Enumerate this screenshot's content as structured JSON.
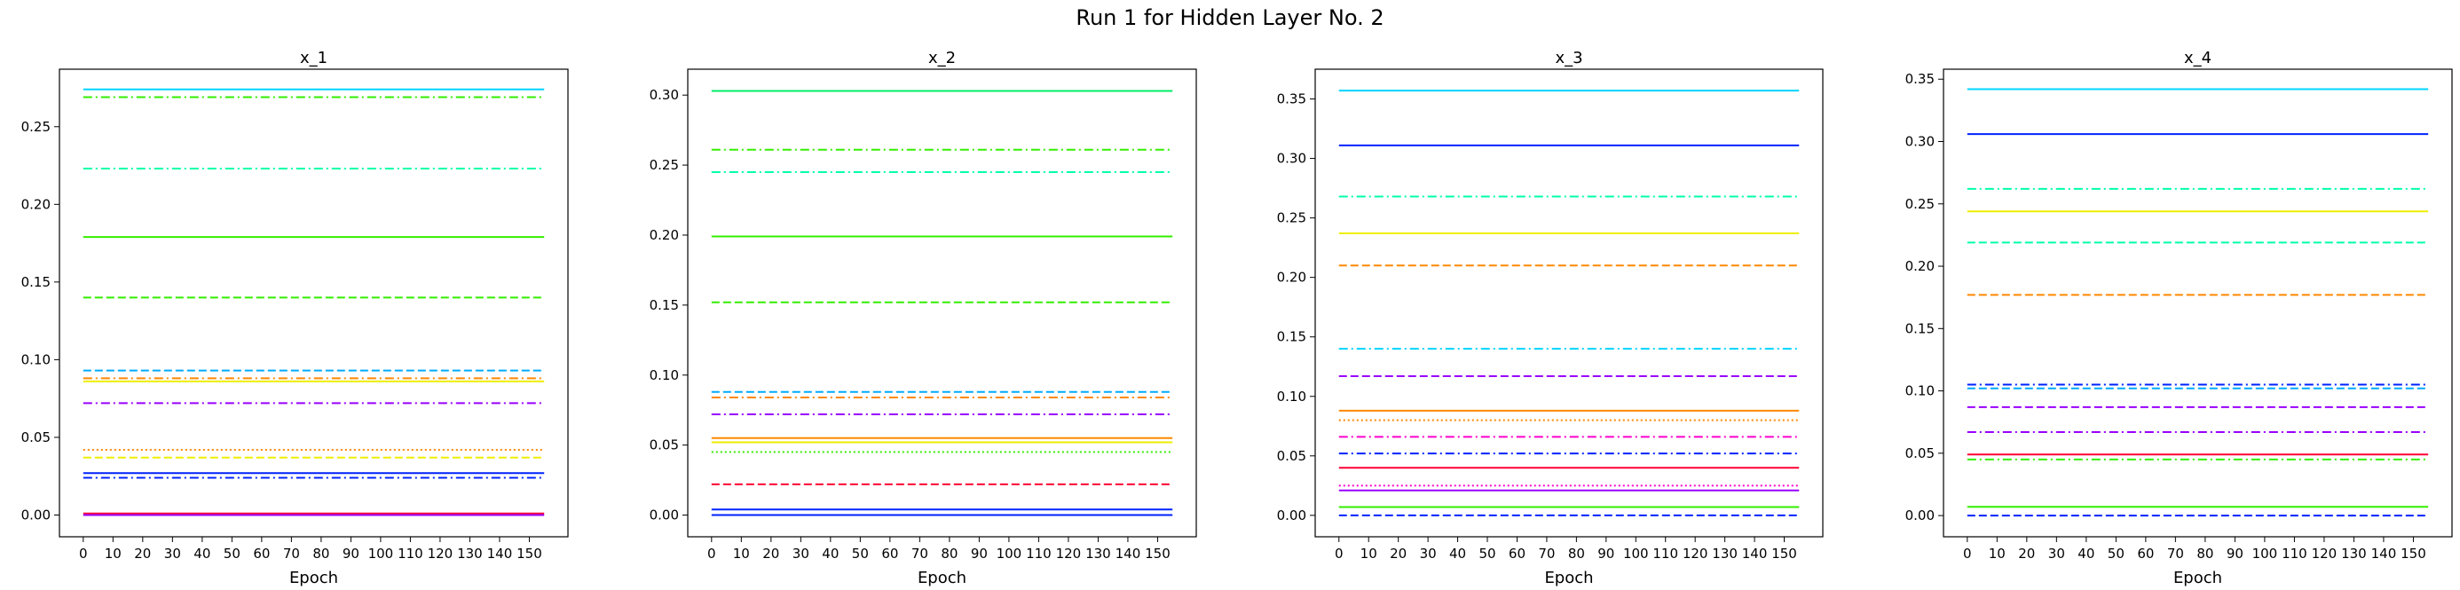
{
  "figure": {
    "suptitle": "Run 1 for Hidden Layer No. 2"
  },
  "chart_data": [
    {
      "type": "line",
      "title": "x_1",
      "xlabel": "Epoch",
      "ylabel": "",
      "xlim": [
        -8,
        163
      ],
      "ylim": [
        -0.014,
        0.287
      ],
      "xticks": [
        0,
        10,
        20,
        30,
        40,
        50,
        60,
        70,
        80,
        90,
        100,
        110,
        120,
        130,
        140,
        150
      ],
      "yticks": [
        0.0,
        0.05,
        0.1,
        0.15,
        0.2,
        0.25
      ],
      "yticklabels": [
        "0.00",
        "0.05",
        "0.10",
        "0.15",
        "0.20",
        "0.25"
      ],
      "grid": false,
      "x_range": [
        0,
        155
      ],
      "series": [
        {
          "value": 0.274,
          "color": "#00d4ff",
          "style": "solid"
        },
        {
          "value": 0.269,
          "color": "#33ee00",
          "style": "dashdot"
        },
        {
          "value": 0.223,
          "color": "#00ffaa",
          "style": "dashdot"
        },
        {
          "value": 0.179,
          "color": "#33ee00",
          "style": "solid"
        },
        {
          "value": 0.14,
          "color": "#33ee00",
          "style": "dashed"
        },
        {
          "value": 0.093,
          "color": "#00aaff",
          "style": "dashed"
        },
        {
          "value": 0.088,
          "color": "#ff8800",
          "style": "dashdot"
        },
        {
          "value": 0.086,
          "color": "#eeee00",
          "style": "solid"
        },
        {
          "value": 0.072,
          "color": "#9900ff",
          "style": "dashdot"
        },
        {
          "value": 0.042,
          "color": "#ff8800",
          "style": "dotted"
        },
        {
          "value": 0.037,
          "color": "#eeee00",
          "style": "dashed"
        },
        {
          "value": 0.027,
          "color": "#0022ff",
          "style": "solid"
        },
        {
          "value": 0.024,
          "color": "#0022ff",
          "style": "dashdot"
        },
        {
          "value": 0.001,
          "color": "#ff0033",
          "style": "solid"
        },
        {
          "value": 0.0,
          "color": "#9900ff",
          "style": "solid"
        }
      ]
    },
    {
      "type": "line",
      "title": "x_2",
      "xlabel": "Epoch",
      "ylabel": "",
      "xlim": [
        -8,
        163
      ],
      "ylim": [
        -0.0155,
        0.3185
      ],
      "xticks": [
        0,
        10,
        20,
        30,
        40,
        50,
        60,
        70,
        80,
        90,
        100,
        110,
        120,
        130,
        140,
        150
      ],
      "yticks": [
        0.0,
        0.05,
        0.1,
        0.15,
        0.2,
        0.25,
        0.3
      ],
      "yticklabels": [
        "0.00",
        "0.05",
        "0.10",
        "0.15",
        "0.20",
        "0.25",
        "0.30"
      ],
      "grid": false,
      "x_range": [
        0,
        155
      ],
      "series": [
        {
          "value": 0.303,
          "color": "#00ee66",
          "style": "solid"
        },
        {
          "value": 0.261,
          "color": "#33ee00",
          "style": "dashdot"
        },
        {
          "value": 0.245,
          "color": "#00ffaa",
          "style": "dashdot"
        },
        {
          "value": 0.199,
          "color": "#33ee00",
          "style": "solid"
        },
        {
          "value": 0.152,
          "color": "#33ee00",
          "style": "dashed"
        },
        {
          "value": 0.088,
          "color": "#00aaff",
          "style": "dashed"
        },
        {
          "value": 0.084,
          "color": "#ff8800",
          "style": "dashdot"
        },
        {
          "value": 0.072,
          "color": "#9900ff",
          "style": "dashdot"
        },
        {
          "value": 0.055,
          "color": "#ff8800",
          "style": "solid"
        },
        {
          "value": 0.052,
          "color": "#eeee00",
          "style": "solid"
        },
        {
          "value": 0.045,
          "color": "#33ee00",
          "style": "dotted"
        },
        {
          "value": 0.022,
          "color": "#ff0033",
          "style": "dashed"
        },
        {
          "value": 0.004,
          "color": "#0022ff",
          "style": "solid"
        },
        {
          "value": 0.0,
          "color": "#0022ff",
          "style": "solid"
        }
      ]
    },
    {
      "type": "line",
      "title": "x_3",
      "xlabel": "Epoch",
      "ylabel": "",
      "xlim": [
        -8,
        163
      ],
      "ylim": [
        -0.018,
        0.375
      ],
      "xticks": [
        0,
        10,
        20,
        30,
        40,
        50,
        60,
        70,
        80,
        90,
        100,
        110,
        120,
        130,
        140,
        150
      ],
      "yticks": [
        0.0,
        0.05,
        0.1,
        0.15,
        0.2,
        0.25,
        0.3,
        0.35
      ],
      "yticklabels": [
        "0.00",
        "0.05",
        "0.10",
        "0.15",
        "0.20",
        "0.25",
        "0.30",
        "0.35"
      ],
      "grid": false,
      "x_range": [
        0,
        155
      ],
      "series": [
        {
          "value": 0.357,
          "color": "#00d4ff",
          "style": "solid"
        },
        {
          "value": 0.311,
          "color": "#0022ff",
          "style": "solid"
        },
        {
          "value": 0.268,
          "color": "#00ffaa",
          "style": "dashdot"
        },
        {
          "value": 0.237,
          "color": "#eeee00",
          "style": "solid"
        },
        {
          "value": 0.21,
          "color": "#ff8800",
          "style": "dashed"
        },
        {
          "value": 0.14,
          "color": "#00d4ff",
          "style": "dashdot"
        },
        {
          "value": 0.117,
          "color": "#9900ff",
          "style": "dashed"
        },
        {
          "value": 0.088,
          "color": "#ff8800",
          "style": "solid"
        },
        {
          "value": 0.08,
          "color": "#ff8800",
          "style": "dotted"
        },
        {
          "value": 0.066,
          "color": "#ff00cc",
          "style": "dashdot"
        },
        {
          "value": 0.052,
          "color": "#0022ff",
          "style": "dashdot"
        },
        {
          "value": 0.04,
          "color": "#ff0033",
          "style": "solid"
        },
        {
          "value": 0.025,
          "color": "#ff00cc",
          "style": "dotted"
        },
        {
          "value": 0.021,
          "color": "#9900ff",
          "style": "solid"
        },
        {
          "value": 0.007,
          "color": "#33ee00",
          "style": "solid"
        },
        {
          "value": 0.0,
          "color": "#0022ff",
          "style": "dashed"
        }
      ]
    },
    {
      "type": "line",
      "title": "x_4",
      "xlabel": "Epoch",
      "ylabel": "",
      "xlim": [
        -8,
        163
      ],
      "ylim": [
        -0.017,
        0.358
      ],
      "xticks": [
        0,
        10,
        20,
        30,
        40,
        50,
        60,
        70,
        80,
        90,
        100,
        110,
        120,
        130,
        140,
        150
      ],
      "yticks": [
        0.0,
        0.05,
        0.1,
        0.15,
        0.2,
        0.25,
        0.3,
        0.35
      ],
      "yticklabels": [
        "0.00",
        "0.05",
        "0.10",
        "0.15",
        "0.20",
        "0.25",
        "0.30",
        "0.35"
      ],
      "grid": false,
      "x_range": [
        0,
        155
      ],
      "series": [
        {
          "value": 0.342,
          "color": "#00d4ff",
          "style": "solid"
        },
        {
          "value": 0.306,
          "color": "#0022ff",
          "style": "solid"
        },
        {
          "value": 0.262,
          "color": "#00ffaa",
          "style": "dashdot"
        },
        {
          "value": 0.244,
          "color": "#eeee00",
          "style": "solid"
        },
        {
          "value": 0.219,
          "color": "#00ffaa",
          "style": "dashed"
        },
        {
          "value": 0.177,
          "color": "#ff8800",
          "style": "dashed"
        },
        {
          "value": 0.105,
          "color": "#0022ff",
          "style": "dashdot"
        },
        {
          "value": 0.102,
          "color": "#00aaff",
          "style": "dashed"
        },
        {
          "value": 0.087,
          "color": "#9900ff",
          "style": "dashed"
        },
        {
          "value": 0.067,
          "color": "#9900ff",
          "style": "dashdot"
        },
        {
          "value": 0.049,
          "color": "#ff0033",
          "style": "solid"
        },
        {
          "value": 0.045,
          "color": "#33ee00",
          "style": "dashdot"
        },
        {
          "value": 0.007,
          "color": "#33ee00",
          "style": "solid"
        },
        {
          "value": 0.0,
          "color": "#0022ff",
          "style": "dashed"
        }
      ]
    }
  ]
}
